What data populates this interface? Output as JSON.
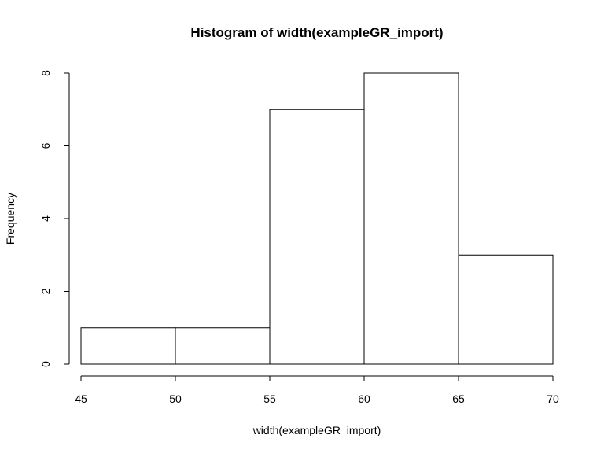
{
  "chart_data": {
    "type": "bar",
    "title": "Histogram of width(exampleGR_import)",
    "xlabel": "width(exampleGR_import)",
    "ylabel": "Frequency",
    "bins": [
      {
        "start": 45,
        "end": 50,
        "count": 1
      },
      {
        "start": 50,
        "end": 55,
        "count": 1
      },
      {
        "start": 55,
        "end": 60,
        "count": 7
      },
      {
        "start": 60,
        "end": 65,
        "count": 8
      },
      {
        "start": 65,
        "end": 70,
        "count": 3
      }
    ],
    "xlim": [
      45,
      70
    ],
    "ylim": [
      0,
      8
    ],
    "x_ticks": [
      45,
      50,
      55,
      60,
      65,
      70
    ],
    "y_ticks": [
      0,
      2,
      4,
      6,
      8
    ],
    "grid": false,
    "colors": {
      "bar_fill": "#ffffff",
      "bar_stroke": "#000000",
      "axis": "#000000"
    }
  }
}
